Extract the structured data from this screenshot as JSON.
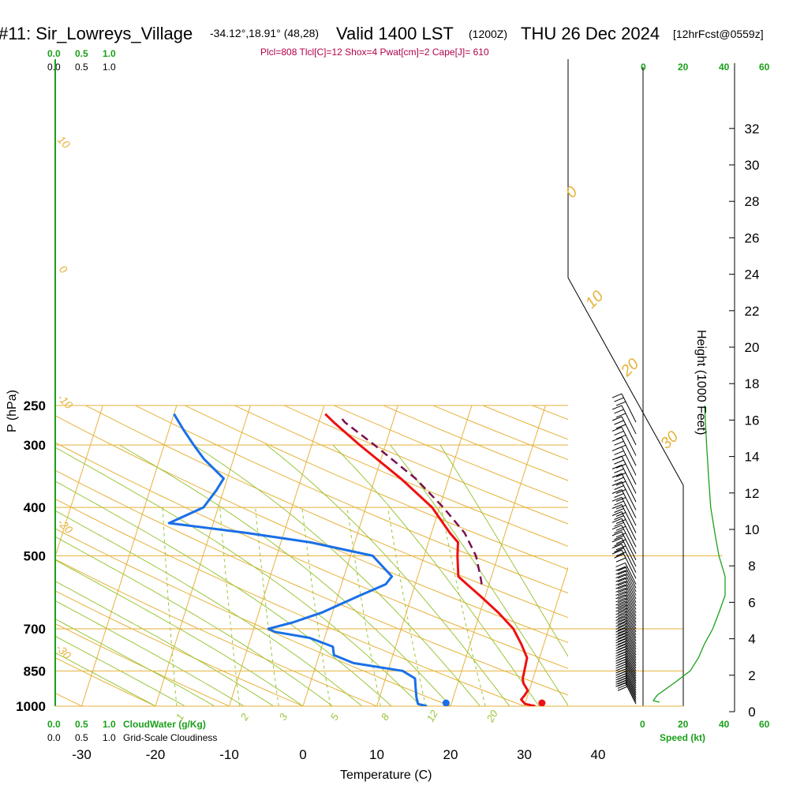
{
  "header": {
    "station": "#11: Sir_Lowreys_Village",
    "location": "-34.12°,18.91° (48,28)",
    "valid": "Valid 1400 LST",
    "utc": "(1200Z)",
    "date": "THU 26 Dec 2024",
    "forecast": "[12hrFcst@0559z]"
  },
  "params_line": "Plcl=808 Tlcl[C]=12 Shox=4 Pwat[cm]=2 Cape[J]= 610",
  "axes": {
    "x_label": "Temperature (C)",
    "y_label": "P (hPa)",
    "height_label": "Height (1000 Feet)",
    "speed_label": "Speed (kt)",
    "cloudwater_label": "CloudWater (g/Kg)",
    "cloudiness_label": "Grid-Scale Cloudiness",
    "scale_top_green": [
      "0.0",
      "0.5",
      "1.0"
    ],
    "scale_top_black": [
      "0.0",
      "0.5",
      "1.0"
    ],
    "scale_bottom_green": [
      "0.0",
      "0.5",
      "1.0"
    ],
    "scale_bottom_black": [
      "0.0",
      "0.5",
      "1.0"
    ],
    "speed_ticks": [
      "0",
      "20",
      "40",
      "60"
    ]
  },
  "isotherm_labels": {
    "left": [
      "10",
      "0",
      "-10",
      "-20",
      "-30"
    ],
    "right": [
      "0",
      "10",
      "20",
      "30"
    ]
  },
  "mixing_ratio_labels": [
    "1",
    "2",
    "3",
    "5",
    "8",
    "12",
    "20"
  ],
  "colors": {
    "temperature": "#ee1111",
    "dewpoint": "#1a6fe8",
    "parcel": "#7a1050",
    "isotherm": "#e6b23a",
    "dry_adiabat": "#e6b23a",
    "moist_adiabat": "#9ac63a",
    "mixing_ratio": "#9ac63a",
    "speed_profile": "#1aa01a"
  },
  "chart_data": {
    "type": "line",
    "diagram": "skew-T log-P",
    "x_ticks": [
      -30,
      -20,
      -10,
      0,
      10,
      20,
      30,
      40
    ],
    "pressure_ticks": [
      250,
      300,
      400,
      500,
      700,
      850,
      1000
    ],
    "height_ticks_kft": [
      0,
      2,
      4,
      6,
      8,
      10,
      12,
      14,
      16,
      18,
      20,
      22,
      24,
      26,
      28,
      30,
      32
    ],
    "series": [
      {
        "key": "temperature",
        "points": [
          [
            1000,
            31.5
          ],
          [
            990,
            30.0
          ],
          [
            970,
            29.3
          ],
          [
            950,
            29.6
          ],
          [
            930,
            29.8
          ],
          [
            900,
            28.9
          ],
          [
            880,
            28.6
          ],
          [
            850,
            28.5
          ],
          [
            800,
            28.3
          ],
          [
            750,
            26.9
          ],
          [
            700,
            25.2
          ],
          [
            650,
            22.5
          ],
          [
            600,
            19.2
          ],
          [
            570,
            17.0
          ],
          [
            550,
            15.5
          ],
          [
            500,
            14.5
          ],
          [
            470,
            14.0
          ],
          [
            450,
            12.5
          ],
          [
            400,
            9.0
          ],
          [
            350,
            3.5
          ],
          [
            300,
            -3.5
          ],
          [
            270,
            -8.0
          ],
          [
            260,
            -9.5
          ]
        ]
      },
      {
        "key": "dewpoint",
        "points": [
          [
            1000,
            16.8
          ],
          [
            990,
            15.5
          ],
          [
            960,
            15.0
          ],
          [
            920,
            14.5
          ],
          [
            880,
            14.0
          ],
          [
            850,
            12.0
          ],
          [
            820,
            5.0
          ],
          [
            790,
            2.0
          ],
          [
            760,
            1.5
          ],
          [
            730,
            -2.0
          ],
          [
            710,
            -7.0
          ],
          [
            700,
            -8.0
          ],
          [
            680,
            -5.0
          ],
          [
            650,
            -1.5
          ],
          [
            600,
            3.0
          ],
          [
            570,
            6.0
          ],
          [
            550,
            6.5
          ],
          [
            500,
            3.0
          ],
          [
            470,
            -6.0
          ],
          [
            450,
            -15.0
          ],
          [
            430,
            -26.0
          ],
          [
            400,
            -22.0
          ],
          [
            370,
            -21.0
          ],
          [
            350,
            -20.5
          ],
          [
            320,
            -24.0
          ],
          [
            300,
            -26.0
          ],
          [
            280,
            -28.0
          ],
          [
            260,
            -30.0
          ]
        ]
      },
      {
        "key": "parcel",
        "points": [
          [
            570,
            19.0
          ],
          [
            550,
            18.5
          ],
          [
            500,
            17.0
          ],
          [
            450,
            14.5
          ],
          [
            400,
            10.5
          ],
          [
            350,
            5.5
          ],
          [
            300,
            -1.5
          ],
          [
            270,
            -6.5
          ],
          [
            262,
            -7.5
          ]
        ]
      }
    ],
    "surface_markers": {
      "temperature": 32.5,
      "dewpoint": 19.5,
      "pressure": 1000
    },
    "wind_speed_profile_kt": [
      [
        1000,
        8
      ],
      [
        975,
        5
      ],
      [
        950,
        7
      ],
      [
        900,
        15
      ],
      [
        850,
        23
      ],
      [
        800,
        27
      ],
      [
        750,
        30
      ],
      [
        700,
        34
      ],
      [
        650,
        37
      ],
      [
        600,
        40
      ],
      [
        550,
        40
      ],
      [
        500,
        37
      ],
      [
        450,
        35
      ],
      [
        400,
        33
      ],
      [
        350,
        32
      ],
      [
        300,
        31
      ],
      [
        250,
        30
      ]
    ]
  }
}
